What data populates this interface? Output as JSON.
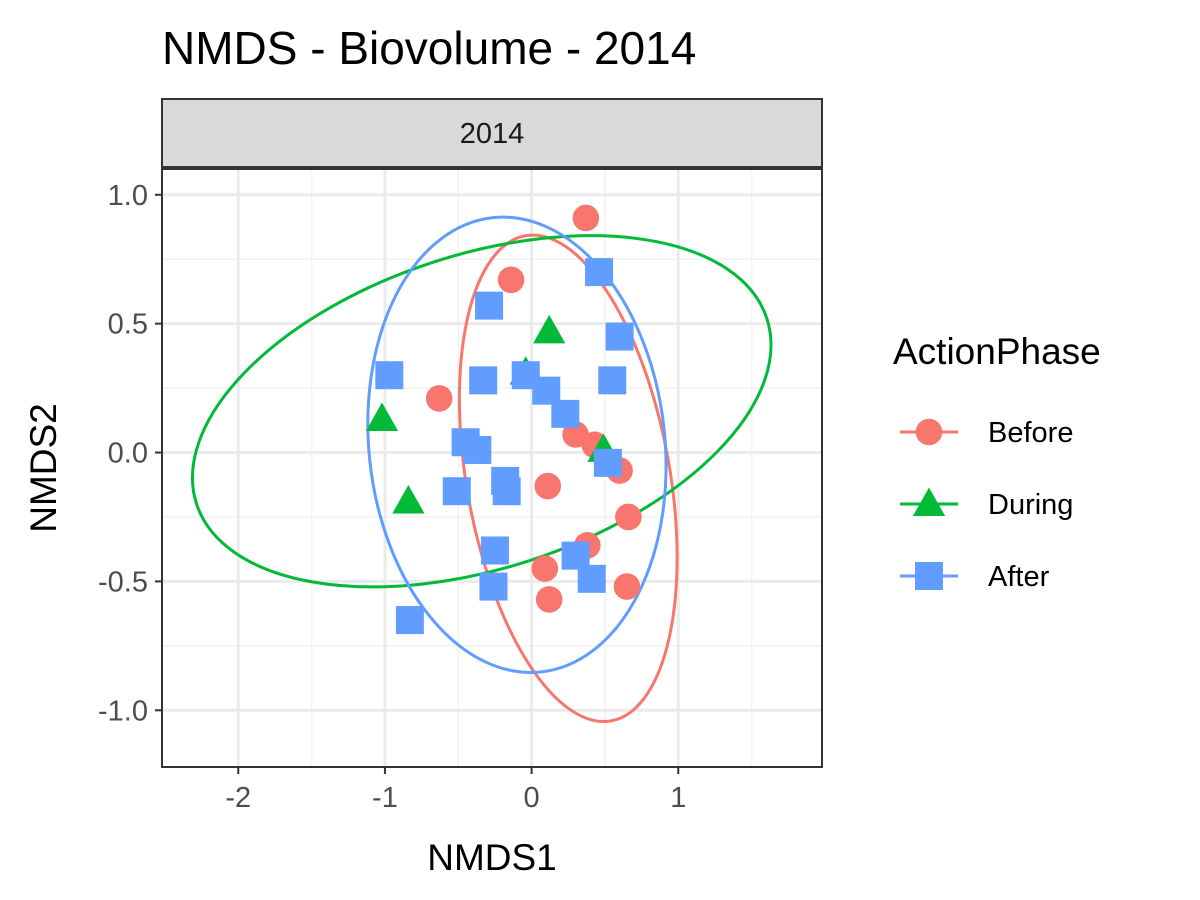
{
  "chart_data": {
    "type": "scatter",
    "title": "NMDS - Biovolume - 2014",
    "facet_label": "2014",
    "xlabel": "NMDS1",
    "ylabel": "NMDS2",
    "xlim": [
      -2.52,
      1.98
    ],
    "ylim": [
      -1.22,
      1.1
    ],
    "x_ticks": [
      -2,
      -1,
      0,
      1
    ],
    "x_tick_labels": [
      "-2",
      "-1",
      "0",
      "1"
    ],
    "y_ticks": [
      1.0,
      0.5,
      0.0,
      -0.5,
      -1.0
    ],
    "y_tick_labels": [
      "1.0",
      "0.5",
      "0.0",
      "-0.5",
      "-1.0"
    ],
    "grid": true,
    "legend": {
      "title": "ActionPhase",
      "position": "right",
      "entries": [
        "Before",
        "During",
        "After"
      ]
    },
    "series": [
      {
        "name": "Before",
        "color": "#F8766D",
        "shape": "circle",
        "points": [
          [
            0.37,
            0.91
          ],
          [
            -0.14,
            0.67
          ],
          [
            -0.63,
            0.21
          ],
          [
            0.3,
            0.07
          ],
          [
            0.43,
            0.03
          ],
          [
            0.6,
            -0.07
          ],
          [
            0.11,
            -0.13
          ],
          [
            0.66,
            -0.25
          ],
          [
            0.38,
            -0.36
          ],
          [
            0.09,
            -0.45
          ],
          [
            0.65,
            -0.52
          ],
          [
            0.12,
            -0.57
          ]
        ],
        "ellipse": {
          "center": [
            0.25,
            -0.1
          ],
          "x_extent": [
            -0.55,
            1.12
          ],
          "y_extent": [
            -1.12,
            0.82
          ]
        }
      },
      {
        "name": "During",
        "color": "#00BA38",
        "shape": "triangle",
        "points": [
          [
            0.12,
            0.47
          ],
          [
            -0.04,
            0.31
          ],
          [
            -1.02,
            0.13
          ],
          [
            -0.84,
            -0.19
          ],
          [
            0.49,
            0.01
          ]
        ],
        "ellipse": {
          "center": [
            -0.34,
            0.16
          ],
          "x_extent": [
            -2.3,
            1.83
          ],
          "y_extent": [
            -0.69,
            1.0
          ]
        }
      },
      {
        "name": "After",
        "color": "#619CFF",
        "shape": "square",
        "points": [
          [
            0.46,
            0.7
          ],
          [
            -0.29,
            0.57
          ],
          [
            0.6,
            0.45
          ],
          [
            -0.97,
            0.3
          ],
          [
            -0.33,
            0.28
          ],
          [
            -0.04,
            0.3
          ],
          [
            0.55,
            0.28
          ],
          [
            0.1,
            0.24
          ],
          [
            0.23,
            0.15
          ],
          [
            -0.45,
            0.04
          ],
          [
            -0.37,
            0.01
          ],
          [
            -0.51,
            -0.15
          ],
          [
            -0.18,
            -0.11
          ],
          [
            -0.17,
            -0.15
          ],
          [
            0.52,
            -0.04
          ],
          [
            -0.25,
            -0.38
          ],
          [
            0.3,
            -0.4
          ],
          [
            -0.26,
            -0.52
          ],
          [
            0.41,
            -0.49
          ],
          [
            -0.83,
            -0.65
          ]
        ],
        "ellipse": {
          "center": [
            -0.1,
            0.03
          ],
          "x_extent": [
            -1.17,
            1.0
          ],
          "y_extent": [
            -0.87,
            0.92
          ]
        }
      }
    ]
  }
}
